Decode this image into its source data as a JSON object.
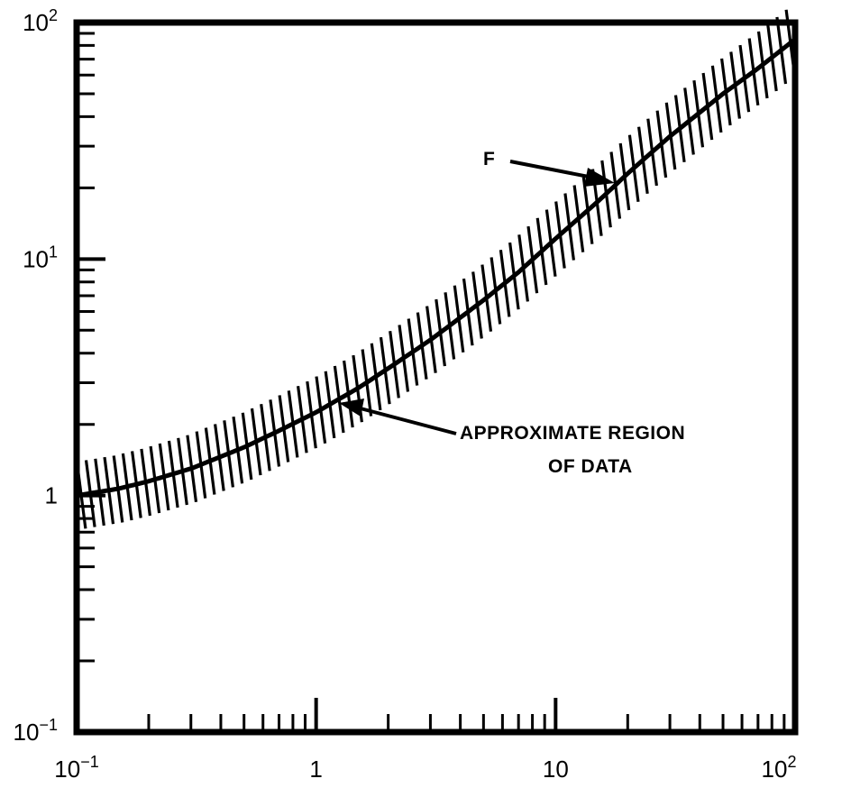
{
  "chart_data": {
    "type": "line",
    "title": "",
    "xlabel": "",
    "ylabel": "",
    "xscale": "log",
    "yscale": "log",
    "xlim": [
      0.1,
      100
    ],
    "ylim": [
      0.1,
      100
    ],
    "grid": false,
    "x_ticks": [
      {
        "value": 0.1,
        "base": "10",
        "exp": "−1"
      },
      {
        "value": 1,
        "base": "1",
        "exp": ""
      },
      {
        "value": 10,
        "base": "10",
        "exp": ""
      },
      {
        "value": 100,
        "base": "10",
        "exp": "2"
      }
    ],
    "y_ticks": [
      {
        "value": 0.1,
        "base": "10",
        "exp": "−1"
      },
      {
        "value": 1,
        "base": "1",
        "exp": ""
      },
      {
        "value": 10,
        "base": "10",
        "exp": "1"
      },
      {
        "value": 100,
        "base": "10",
        "exp": "2"
      }
    ],
    "series": [
      {
        "x": [
          0.1,
          0.15,
          0.2,
          0.3,
          0.5,
          0.7,
          1,
          1.5,
          2,
          3,
          5,
          7,
          10,
          15,
          20,
          30,
          50,
          70,
          100
        ],
        "y": [
          1.0,
          1.07,
          1.15,
          1.3,
          1.6,
          1.88,
          2.25,
          2.85,
          3.45,
          4.55,
          6.7,
          8.8,
          12.2,
          17.5,
          23,
          33,
          50,
          64,
          85
        ]
      }
    ],
    "band": {
      "label_lines": [
        "APPROXIMATE REGION",
        "OF DATA"
      ],
      "lower_factor": 0.72,
      "upper_factor": 1.38
    },
    "annotations": [
      {
        "text": "F",
        "target": "curve"
      },
      {
        "text": "APPROXIMATE REGION",
        "target": "band"
      },
      {
        "text": "OF DATA",
        "target": "band"
      }
    ]
  }
}
